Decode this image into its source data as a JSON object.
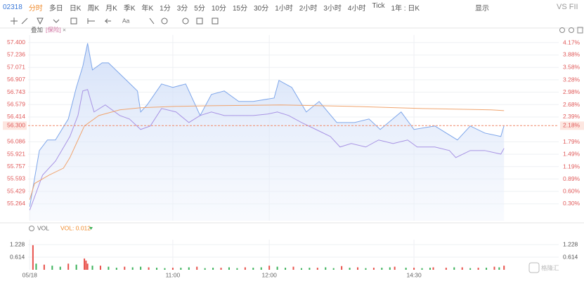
{
  "toolbar": {
    "symbol": "02318",
    "periods": [
      "分时",
      "多日",
      "日K",
      "周K",
      "月K",
      "季K",
      "年K",
      "1分",
      "3分",
      "5分",
      "10分",
      "15分",
      "30分",
      "1小时",
      "2小时",
      "3小时",
      "4小时",
      "Tick"
    ],
    "range": "1年 : 日K",
    "display": "显示",
    "compare": "VS FII",
    "font_tool": "Aa"
  },
  "overlay": {
    "label": "叠加",
    "tag": "[保险]",
    "close": "×"
  },
  "volume_header": {
    "name": "VOL",
    "value_text": "VOL: 0.012"
  },
  "watermark": "格隆汇",
  "chart_data": [
    {
      "type": "line",
      "xlim": [
        0,
        330
      ],
      "ylim": [
        55.04,
        57.5
      ],
      "y2lim": [
        -0.105,
        4.36
      ],
      "yticks": [
        {
          "value": 57.4,
          "label": "57.400"
        },
        57.236,
        57.071,
        56.907,
        56.743,
        56.579,
        56.414,
        56.086,
        55.921,
        55.757,
        55.593,
        55.429,
        55.264
      ],
      "y2ticks": [
        {
          "value": 4.17,
          "label": "4.17%"
        },
        {
          "value": 3.88,
          "label": "3.88%"
        },
        {
          "value": 3.58,
          "label": "3.58%"
        },
        {
          "value": 3.28,
          "label": "3.28%"
        },
        {
          "value": 2.98,
          "label": "2.98%"
        },
        {
          "value": 2.68,
          "label": "2.68%"
        },
        {
          "value": 2.39,
          "label": "2.39%"
        },
        {
          "value": 1.79,
          "label": "1.79%"
        },
        {
          "value": 1.49,
          "label": "1.49%"
        },
        {
          "value": 1.19,
          "label": "1.19%"
        },
        {
          "value": 0.89,
          "label": "0.89%"
        },
        {
          "value": 0.6,
          "label": "0.60%"
        },
        {
          "value": 0.3,
          "label": "0.30%"
        }
      ],
      "last_price": {
        "value": 56.3,
        "label": "56.300"
      },
      "last_change": {
        "value": 2.18,
        "label": "2.18%"
      },
      "series": [
        {
          "color": "#7ea6ea",
          "area": true,
          "x": [
            1,
            7,
            12,
            17,
            25,
            30,
            34,
            37,
            40,
            46,
            50,
            59,
            68,
            70,
            74,
            83,
            90,
            98,
            107,
            114,
            122,
            131,
            140,
            153,
            156,
            164,
            173,
            181,
            192,
            203,
            212,
            219,
            232,
            240,
            253,
            267,
            275,
            284,
            294,
            296
          ],
          "values": [
            55.227,
            55.97,
            56.11,
            56.11,
            56.388,
            56.806,
            57.084,
            57.391,
            57.038,
            57.131,
            57.131,
            56.945,
            56.759,
            56.481,
            56.574,
            56.852,
            56.806,
            56.852,
            56.434,
            56.713,
            56.759,
            56.62,
            56.62,
            56.666,
            56.899,
            56.806,
            56.481,
            56.62,
            56.341,
            56.341,
            56.388,
            56.249,
            56.481,
            56.249,
            56.295,
            56.11,
            56.295,
            56.202,
            56.156,
            56.3
          ]
        },
        {
          "color": "#a893e4",
          "x": [
            1,
            9,
            17,
            26,
            31,
            34,
            37,
            41,
            48,
            57,
            63,
            70,
            76,
            83,
            92,
            100,
            107,
            114,
            122,
            131,
            140,
            149,
            155,
            162,
            170,
            179,
            188,
            194,
            201,
            210,
            218,
            227,
            236,
            242,
            253,
            262,
            266,
            275,
            284,
            294,
            296
          ],
          "values": [
            55.18,
            55.644,
            55.829,
            56.156,
            56.434,
            56.759,
            56.778,
            56.481,
            56.574,
            56.434,
            56.388,
            56.249,
            56.295,
            56.527,
            56.481,
            56.341,
            56.434,
            56.481,
            56.434,
            56.434,
            56.434,
            56.453,
            56.481,
            56.434,
            56.341,
            56.249,
            56.156,
            56.017,
            56.063,
            56.017,
            56.11,
            56.063,
            56.11,
            56.017,
            56.017,
            55.97,
            55.877,
            55.97,
            55.97,
            55.923,
            55.998
          ]
        },
        {
          "color": "#f0a46e",
          "x": [
            1,
            4,
            13,
            22,
            26,
            31,
            35,
            44,
            57,
            70,
            92,
            114,
            157,
            201,
            245,
            288,
            296
          ],
          "values": [
            55.32,
            55.533,
            55.644,
            55.737,
            55.876,
            56.11,
            56.295,
            56.434,
            56.509,
            56.537,
            56.555,
            56.564,
            56.574,
            56.555,
            56.527,
            56.509,
            56.499
          ]
        }
      ]
    },
    {
      "type": "bar",
      "xlim": [
        0,
        330
      ],
      "ylim": [
        0,
        1.47
      ],
      "yticks": [
        1.228,
        0.614
      ],
      "xticks": [
        {
          "value": 1,
          "label": "05/18"
        },
        {
          "value": 90,
          "label": "11:00"
        },
        {
          "value": 150,
          "label": "12:00"
        },
        {
          "value": 240,
          "label": "14:30"
        }
      ],
      "series": [
        {
          "color": "#e8514b",
          "x": [
            3,
            10,
            25,
            35,
            36,
            37,
            45,
            60,
            75,
            90,
            105,
            120,
            135,
            150,
            165,
            180,
            195,
            205,
            215,
            228,
            240,
            252,
            260,
            270,
            280,
            290,
            296
          ],
          "values": [
            1.2,
            0.25,
            0.3,
            0.55,
            0.45,
            0.3,
            0.2,
            0.15,
            0.12,
            0.1,
            0.15,
            0.1,
            0.12,
            0.2,
            0.15,
            0.1,
            0.18,
            0.12,
            0.1,
            0.15,
            0.1,
            0.12,
            0.1,
            0.12,
            0.1,
            0.15,
            0.2
          ]
        },
        {
          "color": "#3bb25a",
          "x": [
            5,
            15,
            20,
            30,
            40,
            50,
            55,
            65,
            70,
            80,
            85,
            95,
            100,
            110,
            115,
            125,
            130,
            140,
            145,
            155,
            160,
            170,
            175,
            185,
            190,
            200,
            210,
            220,
            225,
            235,
            245,
            250,
            265,
            275,
            285,
            293
          ],
          "values": [
            0.3,
            0.2,
            0.15,
            0.25,
            0.2,
            0.15,
            0.1,
            0.12,
            0.15,
            0.1,
            0.08,
            0.1,
            0.12,
            0.08,
            0.1,
            0.12,
            0.08,
            0.1,
            0.12,
            0.15,
            0.1,
            0.08,
            0.1,
            0.12,
            0.08,
            0.1,
            0.08,
            0.1,
            0.12,
            0.1,
            0.08,
            0.1,
            0.12,
            0.08,
            0.1,
            0.12
          ]
        }
      ]
    }
  ]
}
